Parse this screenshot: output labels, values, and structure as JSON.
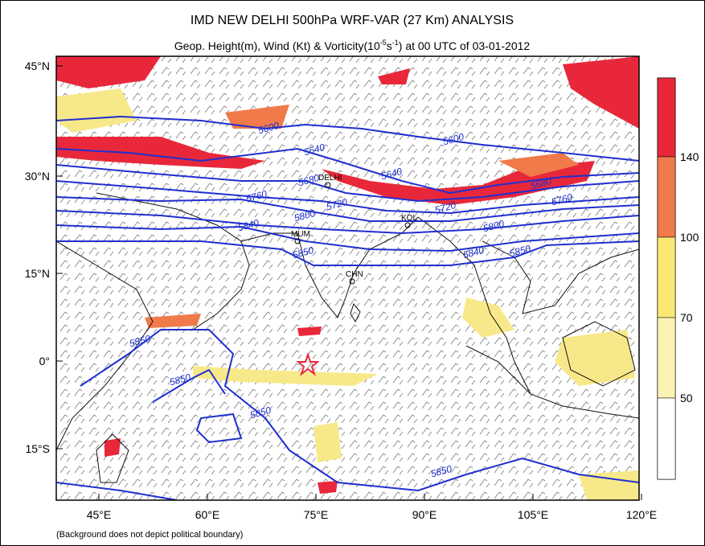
{
  "title": "IMD NEW DELHI 500hPa WRF-VAR (27 Km) ANALYSIS",
  "subtitle": {
    "lead": "Geop. Height(m), Wind (Kt) & Vorticity(10",
    "exp1": "-5",
    "unit": "s",
    "exp2": "-1",
    "tail": ") at 00 UTC of 03-01-2012"
  },
  "lat_ticks": [
    "45°N",
    "30°N",
    "15°N",
    "0°",
    "15°S"
  ],
  "lon_ticks": [
    "45°E",
    "60°E",
    "75°E",
    "90°E",
    "105°E",
    "120°E"
  ],
  "colorbar_ticks": [
    140,
    100,
    70,
    50
  ],
  "contour_labels": [
    "5600",
    "5640",
    "5680",
    "5720",
    "5760",
    "5800",
    "5840",
    "5850",
    "5600",
    "5640",
    "5680",
    "5720",
    "5760",
    "5800",
    "5840",
    "5850",
    "5850",
    "5850",
    "5850",
    "5850"
  ],
  "cities": [
    "DELHI",
    "KOL",
    "MUM",
    "CHN"
  ],
  "footnote": "(Background does not depict political boundary)"
}
